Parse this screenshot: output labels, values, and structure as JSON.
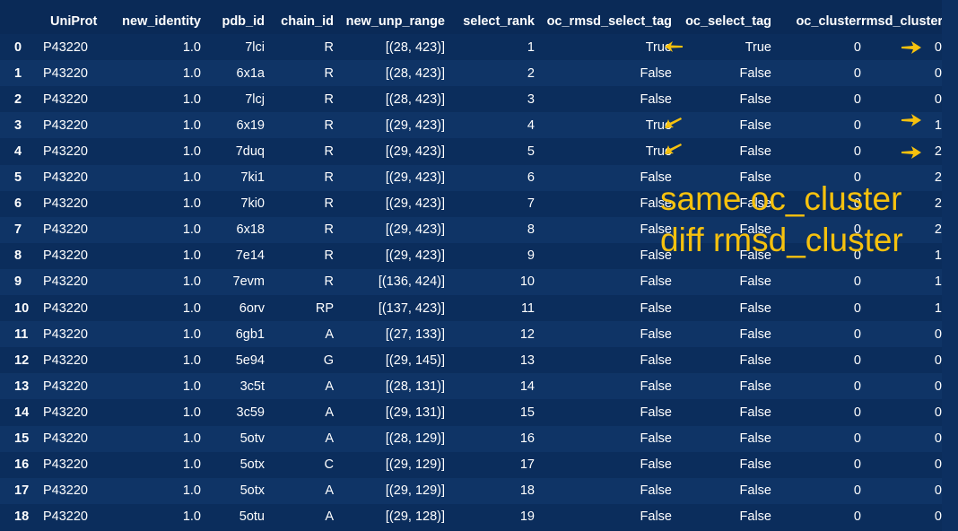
{
  "columns": [
    "",
    "UniProt",
    "new_identity",
    "pdb_id",
    "chain_id",
    "new_unp_range",
    "select_rank",
    "oc_rmsd_select_tag",
    "oc_select_tag",
    "oc_cluster",
    "rmsd_cluster"
  ],
  "rows": [
    [
      "0",
      "P43220",
      "1.0",
      "7lci",
      "R",
      "[(28, 423)]",
      "1",
      "True",
      "True",
      "0",
      "0"
    ],
    [
      "1",
      "P43220",
      "1.0",
      "6x1a",
      "R",
      "[(28, 423)]",
      "2",
      "False",
      "False",
      "0",
      "0"
    ],
    [
      "2",
      "P43220",
      "1.0",
      "7lcj",
      "R",
      "[(28, 423)]",
      "3",
      "False",
      "False",
      "0",
      "0"
    ],
    [
      "3",
      "P43220",
      "1.0",
      "6x19",
      "R",
      "[(29, 423)]",
      "4",
      "True",
      "False",
      "0",
      "1"
    ],
    [
      "4",
      "P43220",
      "1.0",
      "7duq",
      "R",
      "[(29, 423)]",
      "5",
      "True",
      "False",
      "0",
      "2"
    ],
    [
      "5",
      "P43220",
      "1.0",
      "7ki1",
      "R",
      "[(29, 423)]",
      "6",
      "False",
      "False",
      "0",
      "2"
    ],
    [
      "6",
      "P43220",
      "1.0",
      "7ki0",
      "R",
      "[(29, 423)]",
      "7",
      "False",
      "False",
      "0",
      "2"
    ],
    [
      "7",
      "P43220",
      "1.0",
      "6x18",
      "R",
      "[(29, 423)]",
      "8",
      "False",
      "False",
      "0",
      "2"
    ],
    [
      "8",
      "P43220",
      "1.0",
      "7e14",
      "R",
      "[(29, 423)]",
      "9",
      "False",
      "False",
      "0",
      "1"
    ],
    [
      "9",
      "P43220",
      "1.0",
      "7evm",
      "R",
      "[(136, 424)]",
      "10",
      "False",
      "False",
      "0",
      "1"
    ],
    [
      "10",
      "P43220",
      "1.0",
      "6orv",
      "RP",
      "[(137, 423)]",
      "11",
      "False",
      "False",
      "0",
      "1"
    ],
    [
      "11",
      "P43220",
      "1.0",
      "6gb1",
      "A",
      "[(27, 133)]",
      "12",
      "False",
      "False",
      "0",
      "0"
    ],
    [
      "12",
      "P43220",
      "1.0",
      "5e94",
      "G",
      "[(29, 145)]",
      "13",
      "False",
      "False",
      "0",
      "0"
    ],
    [
      "13",
      "P43220",
      "1.0",
      "3c5t",
      "A",
      "[(28, 131)]",
      "14",
      "False",
      "False",
      "0",
      "0"
    ],
    [
      "14",
      "P43220",
      "1.0",
      "3c59",
      "A",
      "[(29, 131)]",
      "15",
      "False",
      "False",
      "0",
      "0"
    ],
    [
      "15",
      "P43220",
      "1.0",
      "5otv",
      "A",
      "[(28, 129)]",
      "16",
      "False",
      "False",
      "0",
      "0"
    ],
    [
      "16",
      "P43220",
      "1.0",
      "5otx",
      "C",
      "[(29, 129)]",
      "17",
      "False",
      "False",
      "0",
      "0"
    ],
    [
      "17",
      "P43220",
      "1.0",
      "5otx",
      "A",
      "[(29, 129)]",
      "18",
      "False",
      "False",
      "0",
      "0"
    ],
    [
      "18",
      "P43220",
      "1.0",
      "5otu",
      "A",
      "[(29, 128)]",
      "19",
      "False",
      "False",
      "0",
      "0"
    ]
  ],
  "annotation": {
    "line1": "same oc_cluster",
    "line2": "diff rmsd_cluster",
    "color": "#f6c10e"
  },
  "colors": {
    "background": "#0a2a57",
    "row_even": "#0b2d5c",
    "row_odd": "#0f3466",
    "text": "#ffffff",
    "accent": "#f6c10e"
  },
  "icons": [
    "arrow-left-icon",
    "arrow-right-icon"
  ]
}
